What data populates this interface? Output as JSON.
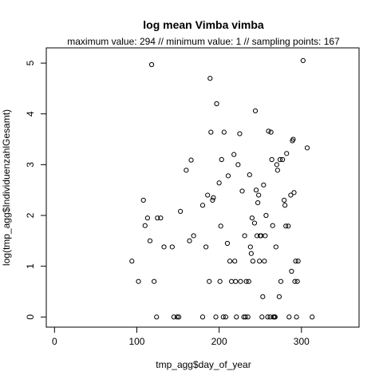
{
  "chart_data": {
    "type": "scatter",
    "title": "log mean Vimba vimba",
    "subtitle": "maximum value: 294  //  minimum value: 1  // sampling points: 167",
    "xlabel": "tmp_agg$day_of_year",
    "ylabel": "log(tmp_agg$IndividuenzahlGesamt)",
    "xlim": [
      -10,
      370
    ],
    "ylim": [
      -0.2,
      5.3
    ],
    "xticks": [
      0,
      100,
      200,
      300
    ],
    "yticks": [
      0,
      1,
      2,
      3,
      4,
      5
    ],
    "grid": false,
    "marker": "open-circle",
    "points": [
      [
        94,
        1.1
      ],
      [
        102,
        0.7
      ],
      [
        108,
        2.3
      ],
      [
        110,
        1.8
      ],
      [
        113,
        1.95
      ],
      [
        116,
        1.5
      ],
      [
        118,
        4.97
      ],
      [
        121,
        0.7
      ],
      [
        124,
        0
      ],
      [
        125,
        1.95
      ],
      [
        129,
        1.95
      ],
      [
        133,
        1.38
      ],
      [
        143,
        1.38
      ],
      [
        145,
        0
      ],
      [
        149,
        0
      ],
      [
        151,
        0
      ],
      [
        153,
        2.08
      ],
      [
        160,
        2.89
      ],
      [
        164,
        1.5
      ],
      [
        166,
        3.09
      ],
      [
        169,
        1.6
      ],
      [
        180,
        0
      ],
      [
        180,
        2.2
      ],
      [
        184,
        1.38
      ],
      [
        186,
        2.4
      ],
      [
        188,
        0.7
      ],
      [
        189,
        4.7
      ],
      [
        190,
        3.64
      ],
      [
        192,
        2.3
      ],
      [
        193,
        2.35
      ],
      [
        196,
        0
      ],
      [
        197,
        4.2
      ],
      [
        200,
        2.64
      ],
      [
        201,
        0.7
      ],
      [
        202,
        1.79
      ],
      [
        203,
        3.1
      ],
      [
        205,
        0
      ],
      [
        206,
        3.64
      ],
      [
        208,
        0
      ],
      [
        210,
        1.45
      ],
      [
        211,
        2.78
      ],
      [
        213,
        1.1
      ],
      [
        215,
        0.7
      ],
      [
        218,
        3.2
      ],
      [
        219,
        1.1
      ],
      [
        220,
        0.7
      ],
      [
        221,
        0
      ],
      [
        223,
        3.0
      ],
      [
        225,
        3.61
      ],
      [
        226,
        0.7
      ],
      [
        228,
        2.48
      ],
      [
        230,
        0
      ],
      [
        231,
        1.6
      ],
      [
        232,
        0
      ],
      [
        233,
        0.7
      ],
      [
        235,
        0
      ],
      [
        236,
        0.7
      ],
      [
        237,
        2.8
      ],
      [
        238,
        1.38
      ],
      [
        239,
        1.25
      ],
      [
        240,
        1.95
      ],
      [
        241,
        1.1
      ],
      [
        243,
        1.85
      ],
      [
        244,
        4.06
      ],
      [
        245,
        2.5
      ],
      [
        246,
        1.6
      ],
      [
        247,
        2.25
      ],
      [
        248,
        2.4
      ],
      [
        249,
        1.1
      ],
      [
        250,
        1.6
      ],
      [
        251,
        1.6
      ],
      [
        252,
        0
      ],
      [
        253,
        0.4
      ],
      [
        254,
        2.6
      ],
      [
        255,
        1.1
      ],
      [
        256,
        1.6
      ],
      [
        257,
        2.0
      ],
      [
        259,
        0
      ],
      [
        260,
        3.66
      ],
      [
        262,
        0
      ],
      [
        263,
        3.64
      ],
      [
        264,
        3.1
      ],
      [
        265,
        1.8
      ],
      [
        266,
        0
      ],
      [
        267,
        0
      ],
      [
        268,
        0
      ],
      [
        269,
        1.38
      ],
      [
        270,
        3.0
      ],
      [
        271,
        2.89
      ],
      [
        273,
        0.4
      ],
      [
        274,
        3.1
      ],
      [
        275,
        0.7
      ],
      [
        277,
        3.1
      ],
      [
        279,
        2.3
      ],
      [
        280,
        2.2
      ],
      [
        281,
        1.79
      ],
      [
        282,
        3.22
      ],
      [
        284,
        1.79
      ],
      [
        285,
        0
      ],
      [
        287,
        2.4
      ],
      [
        288,
        0.9
      ],
      [
        289,
        3.47
      ],
      [
        290,
        3.5
      ],
      [
        291,
        2.45
      ],
      [
        292,
        0.7
      ],
      [
        293,
        1.1
      ],
      [
        294,
        0
      ],
      [
        295,
        0.7
      ],
      [
        296,
        1.1
      ],
      [
        302,
        5.05
      ],
      [
        307,
        3.33
      ],
      [
        313,
        0
      ]
    ]
  }
}
